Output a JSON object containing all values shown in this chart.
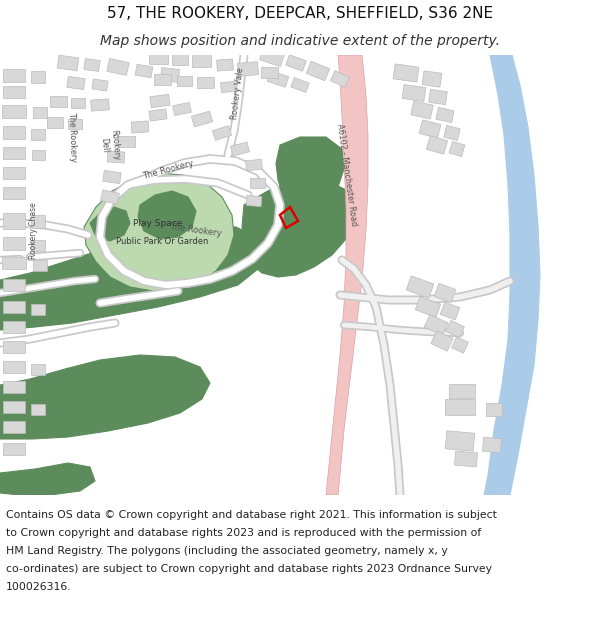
{
  "title_line1": "57, THE ROOKERY, DEEPCAR, SHEFFIELD, S36 2NE",
  "title_line2": "Map shows position and indicative extent of the property.",
  "footer_lines": [
    "Contains OS data © Crown copyright and database right 2021. This information is subject",
    "to Crown copyright and database rights 2023 and is reproduced with the permission of",
    "HM Land Registry. The polygons (including the associated geometry, namely x, y",
    "co-ordinates) are subject to Crown copyright and database rights 2023 Ordnance Survey",
    "100026316."
  ],
  "bg_color": "#ffffff",
  "map_bg": "#f0eeec",
  "road_pink": "#f2c4c4",
  "road_pink_border": "#dba0a0",
  "green_dark": "#5c8c5c",
  "green_light": "#bdd9b0",
  "blue_river": "#aacce8",
  "building_color": "#d8d8d8",
  "building_outline": "#bbbbbb",
  "road_white": "#ffffff",
  "road_outline": "#cccccc",
  "plot_red": "#dd0000",
  "title_fontsize": 11,
  "subtitle_fontsize": 10,
  "footer_fontsize": 7.8
}
